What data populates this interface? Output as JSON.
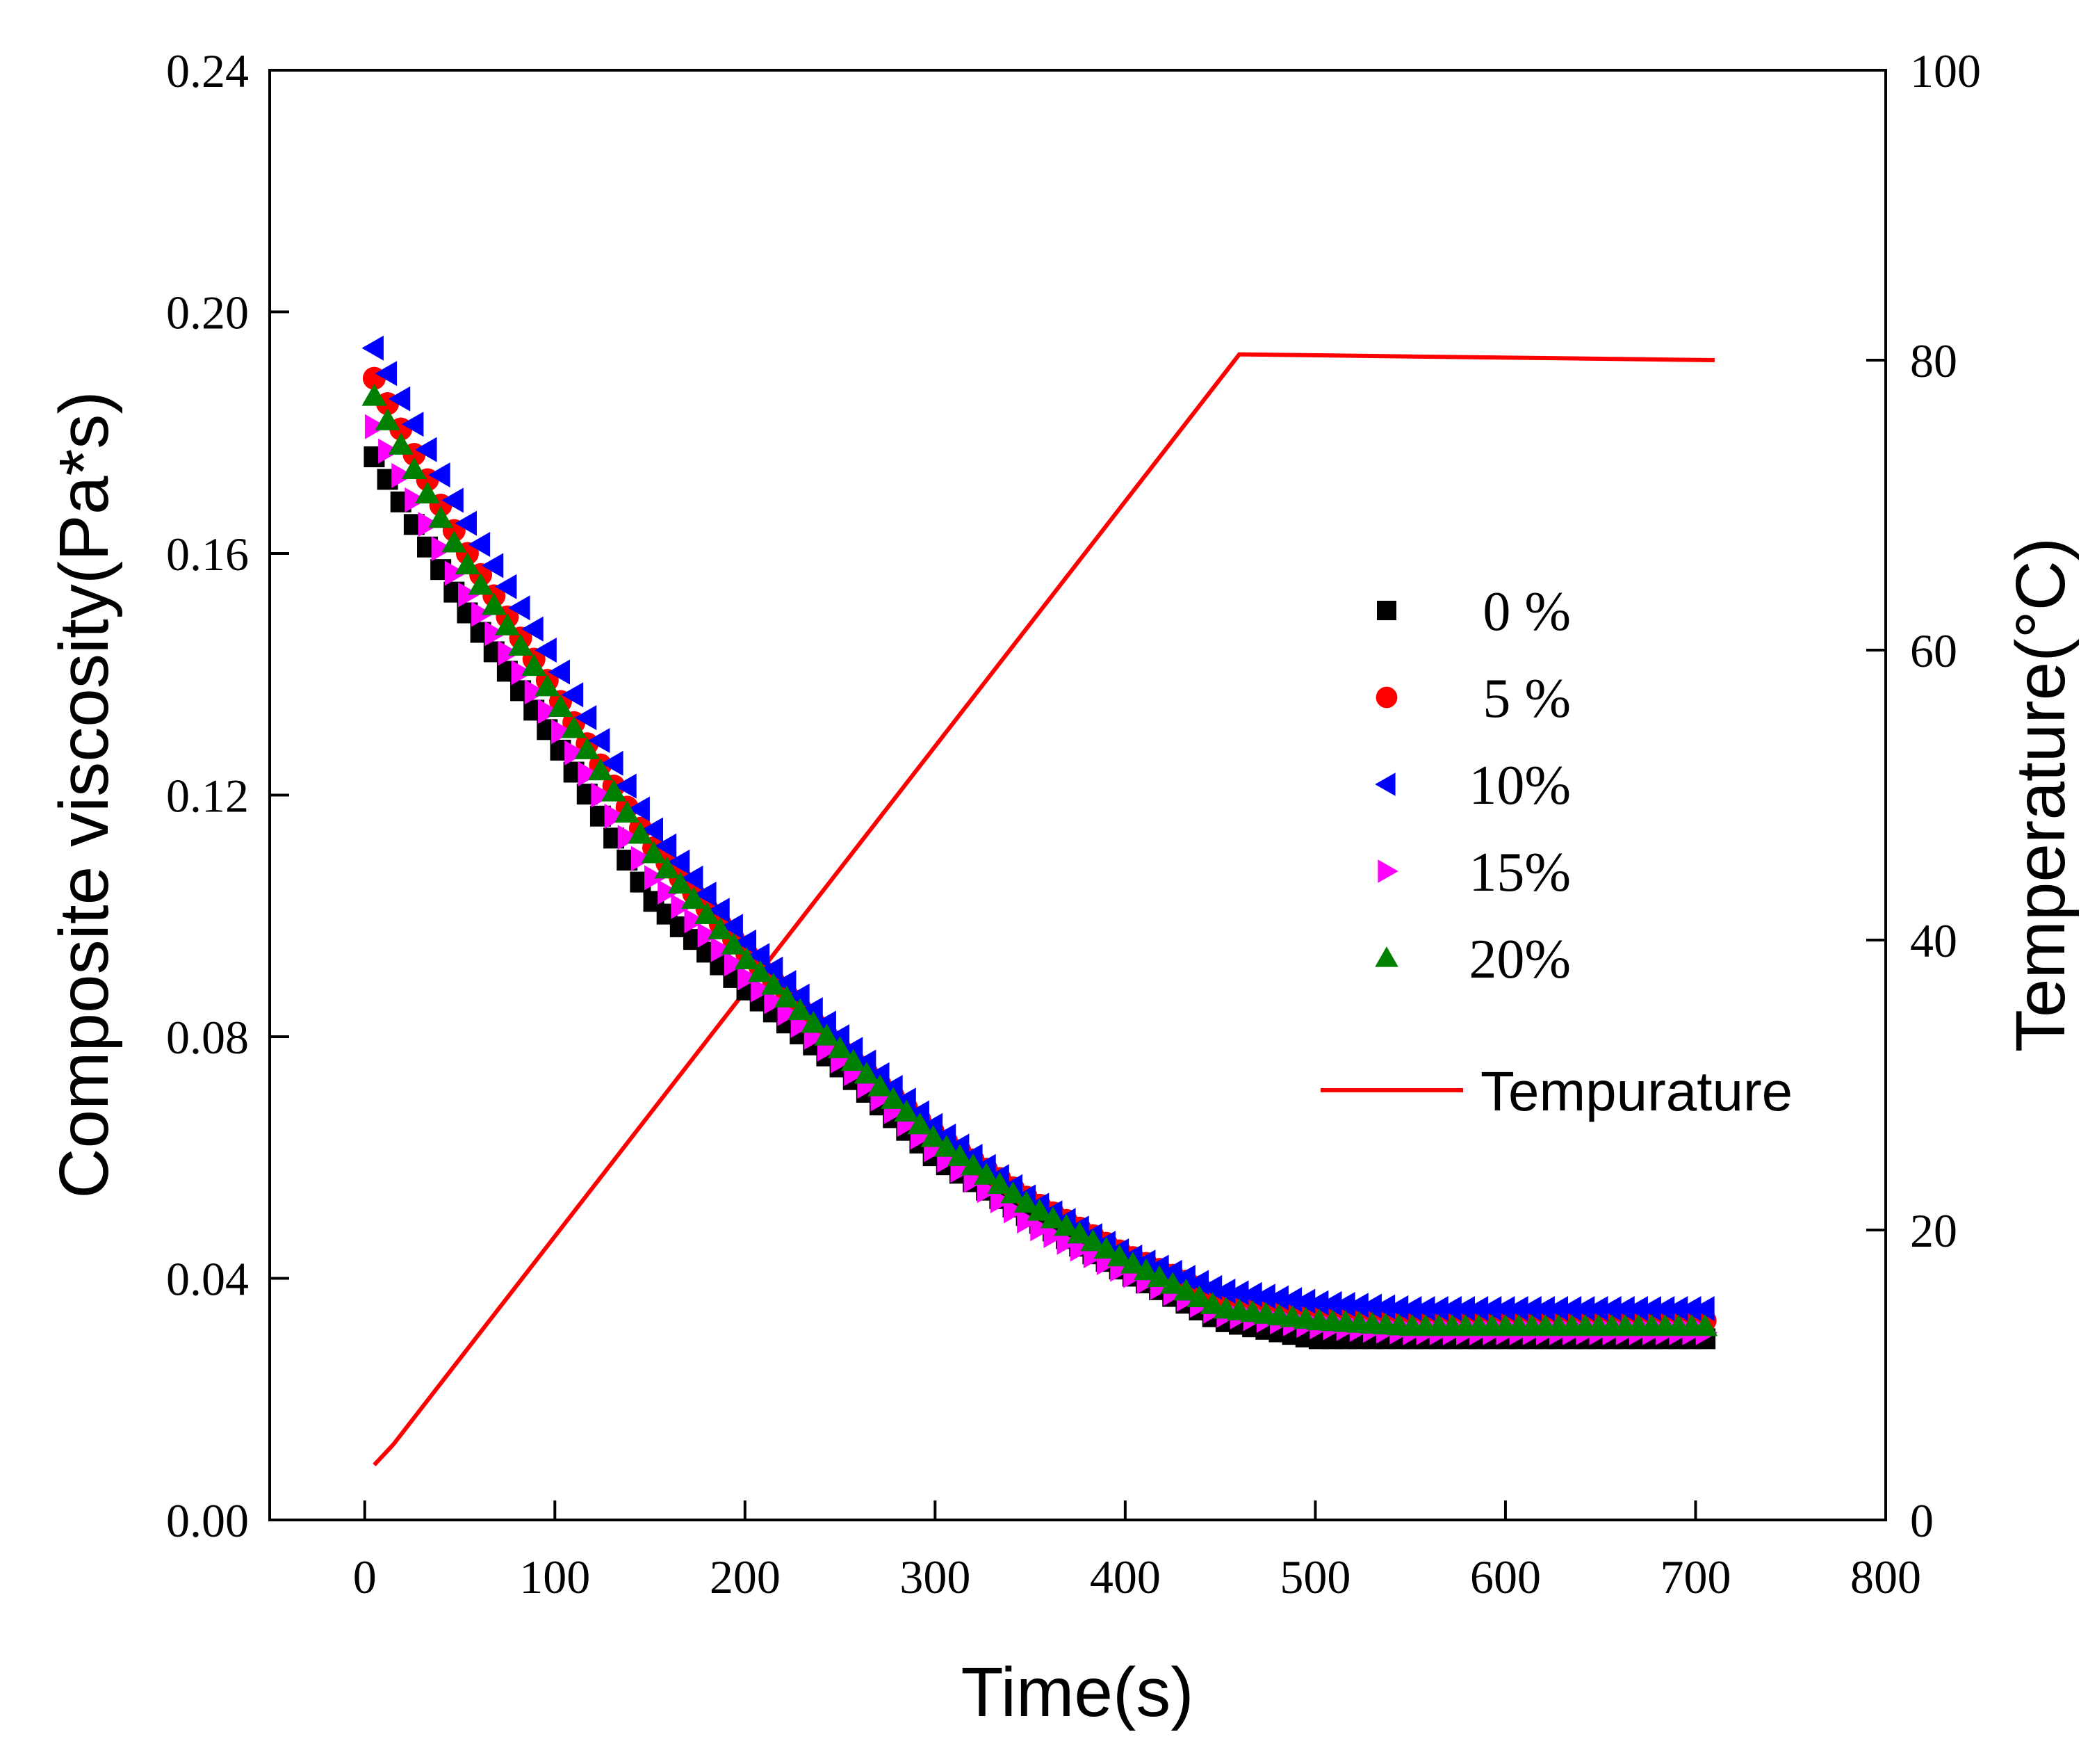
{
  "chart_data": {
    "type": "scatter",
    "title": "",
    "xlabel": "Time(s)",
    "ylabel": "Composite viscosity(Pa*s)",
    "y2label": "Temperature(°C)",
    "xlim": [
      -50,
      800
    ],
    "ylim": [
      0,
      0.24
    ],
    "y2lim": [
      0,
      100
    ],
    "x_ticks": [
      "0",
      "100",
      "200",
      "300",
      "400",
      "500",
      "600",
      "700",
      "800"
    ],
    "y_ticks": [
      "0.00",
      "0.04",
      "0.08",
      "0.12",
      "0.16",
      "0.20",
      "0.24"
    ],
    "y2_ticks": [
      "0",
      "20",
      "40",
      "60",
      "80",
      "100"
    ],
    "legend_position": "right-center",
    "series": [
      {
        "name": "0 %",
        "marker": "square",
        "color": "#000000",
        "points": [
          [
            5,
            0.176
          ],
          [
            50,
            0.152
          ],
          [
            100,
            0.129
          ],
          [
            150,
            0.103
          ],
          [
            200,
            0.088
          ],
          [
            250,
            0.075
          ],
          [
            300,
            0.06
          ],
          [
            350,
            0.05
          ],
          [
            400,
            0.041
          ],
          [
            450,
            0.033
          ],
          [
            500,
            0.03
          ],
          [
            550,
            0.03
          ],
          [
            600,
            0.03
          ],
          [
            650,
            0.03
          ],
          [
            710,
            0.03
          ]
        ]
      },
      {
        "name": "5 %",
        "marker": "circle",
        "color": "#ff0000",
        "points": [
          [
            5,
            0.189
          ],
          [
            50,
            0.162
          ],
          [
            100,
            0.137
          ],
          [
            150,
            0.112
          ],
          [
            200,
            0.094
          ],
          [
            250,
            0.078
          ],
          [
            300,
            0.064
          ],
          [
            350,
            0.053
          ],
          [
            400,
            0.044
          ],
          [
            450,
            0.037
          ],
          [
            500,
            0.034
          ],
          [
            550,
            0.033
          ],
          [
            600,
            0.033
          ],
          [
            650,
            0.033
          ],
          [
            710,
            0.033
          ]
        ]
      },
      {
        "name": "10%",
        "marker": "triangle-left",
        "color": "#0000ff",
        "points": [
          [
            5,
            0.194
          ],
          [
            50,
            0.167
          ],
          [
            100,
            0.142
          ],
          [
            150,
            0.115
          ],
          [
            200,
            0.096
          ],
          [
            250,
            0.08
          ],
          [
            300,
            0.065
          ],
          [
            350,
            0.053
          ],
          [
            400,
            0.044
          ],
          [
            450,
            0.038
          ],
          [
            500,
            0.036
          ],
          [
            550,
            0.035
          ],
          [
            600,
            0.035
          ],
          [
            650,
            0.035
          ],
          [
            710,
            0.035
          ]
        ]
      },
      {
        "name": "15%",
        "marker": "triangle-right",
        "color": "#ff00ff",
        "points": [
          [
            5,
            0.181
          ],
          [
            50,
            0.155
          ],
          [
            100,
            0.132
          ],
          [
            150,
            0.107
          ],
          [
            200,
            0.09
          ],
          [
            250,
            0.076
          ],
          [
            300,
            0.061
          ],
          [
            350,
            0.049
          ],
          [
            400,
            0.041
          ],
          [
            450,
            0.034
          ],
          [
            500,
            0.032
          ],
          [
            550,
            0.031
          ],
          [
            600,
            0.031
          ],
          [
            650,
            0.031
          ],
          [
            710,
            0.031
          ]
        ]
      },
      {
        "name": "20%",
        "marker": "triangle-up",
        "color": "#008000",
        "points": [
          [
            5,
            0.186
          ],
          [
            50,
            0.16
          ],
          [
            100,
            0.136
          ],
          [
            150,
            0.111
          ],
          [
            200,
            0.093
          ],
          [
            250,
            0.078
          ],
          [
            300,
            0.063
          ],
          [
            350,
            0.052
          ],
          [
            400,
            0.043
          ],
          [
            450,
            0.035
          ],
          [
            500,
            0.033
          ],
          [
            550,
            0.032
          ],
          [
            600,
            0.032
          ],
          [
            650,
            0.032
          ],
          [
            710,
            0.032
          ]
        ]
      }
    ],
    "temperature": {
      "name": "Tempurature",
      "color": "#ff0000",
      "axis": "right",
      "points": [
        [
          5,
          3.8
        ],
        [
          15,
          5.2
        ],
        [
          460,
          80.4
        ],
        [
          710,
          80.0
        ]
      ]
    }
  }
}
